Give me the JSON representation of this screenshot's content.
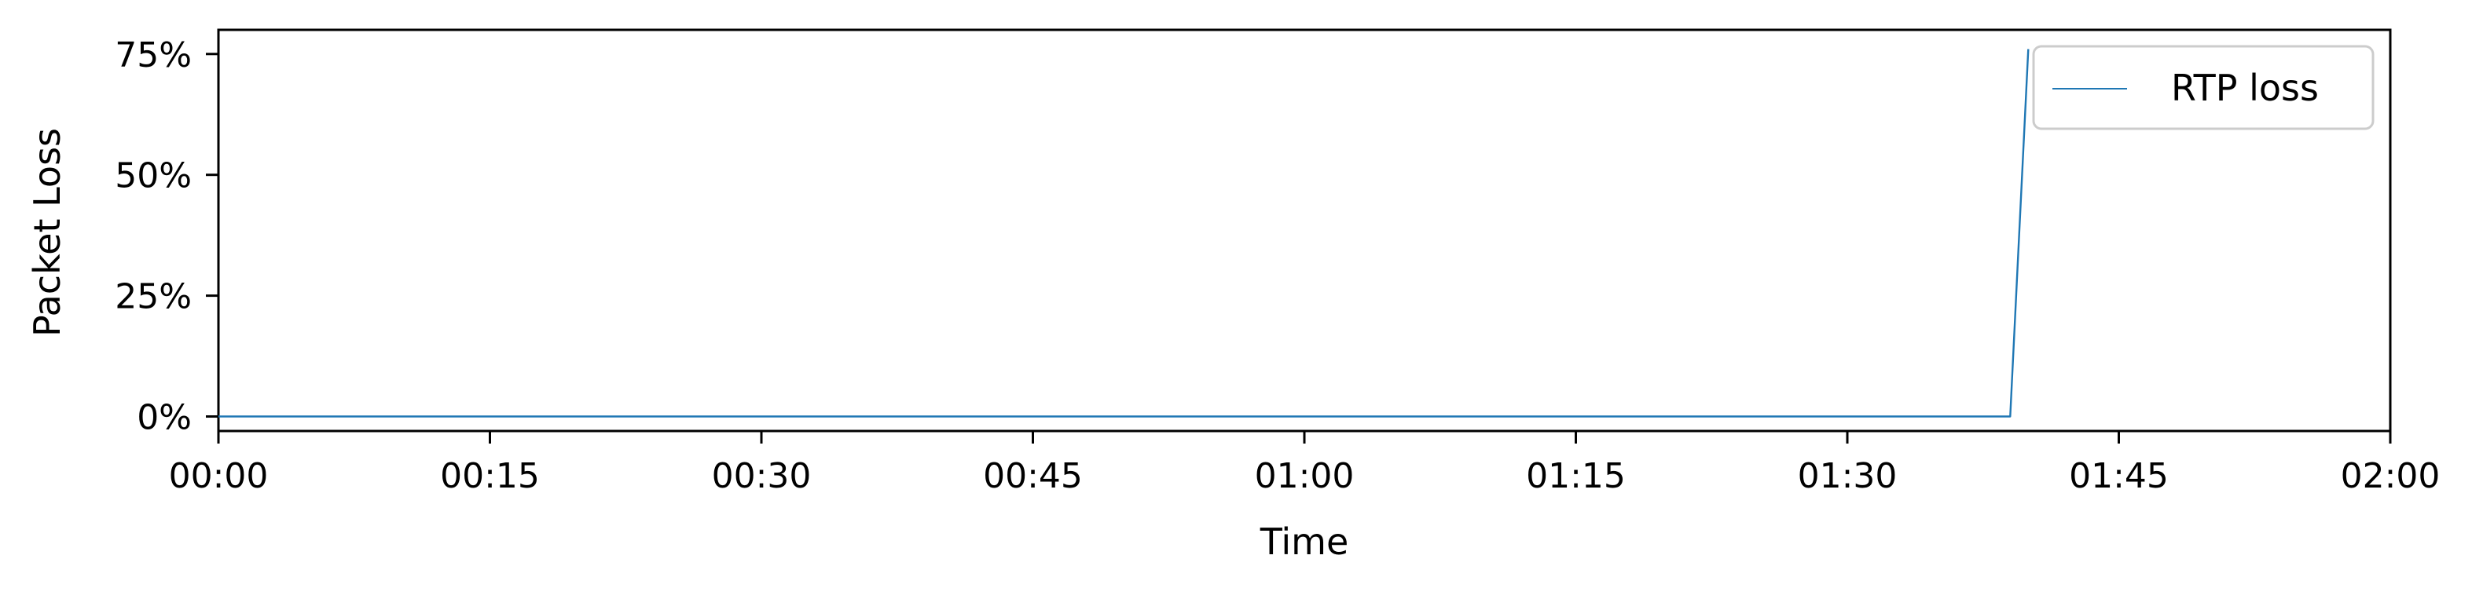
{
  "chart_data": {
    "type": "line",
    "title": "",
    "xlabel": "Time",
    "ylabel": "Packet Loss",
    "x_ticks": [
      "00:00",
      "00:15",
      "00:30",
      "00:45",
      "01:00",
      "01:15",
      "01:30",
      "01:45",
      "02:00"
    ],
    "y_ticks": [
      "0%",
      "25%",
      "50%",
      "75%"
    ],
    "xlim_seconds": [
      0,
      120
    ],
    "ylim": [
      -3,
      80
    ],
    "y_tick_values": [
      0,
      25,
      50,
      75
    ],
    "grid": false,
    "legend_position": "upper right",
    "series": [
      {
        "name": "RTP loss",
        "color": "#1f77b4",
        "x": [
          "00:00",
          "01:39",
          "01:40"
        ],
        "y": [
          0,
          0,
          76
        ]
      }
    ]
  }
}
